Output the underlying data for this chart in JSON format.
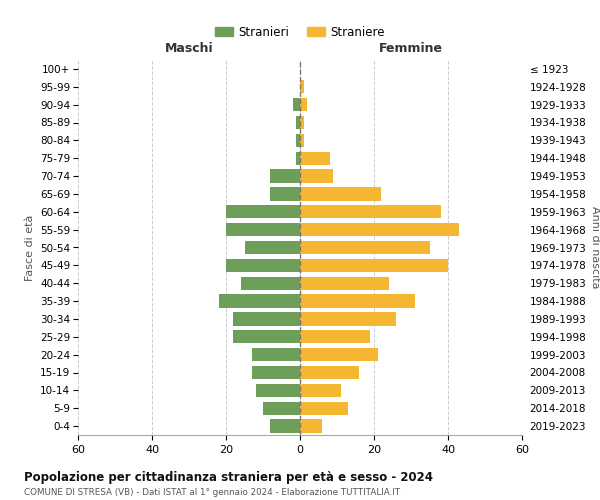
{
  "age_groups": [
    "0-4",
    "5-9",
    "10-14",
    "15-19",
    "20-24",
    "25-29",
    "30-34",
    "35-39",
    "40-44",
    "45-49",
    "50-54",
    "55-59",
    "60-64",
    "65-69",
    "70-74",
    "75-79",
    "80-84",
    "85-89",
    "90-94",
    "95-99",
    "100+"
  ],
  "birth_years": [
    "2019-2023",
    "2014-2018",
    "2009-2013",
    "2004-2008",
    "1999-2003",
    "1994-1998",
    "1989-1993",
    "1984-1988",
    "1979-1983",
    "1974-1978",
    "1969-1973",
    "1964-1968",
    "1959-1963",
    "1954-1958",
    "1949-1953",
    "1944-1948",
    "1939-1943",
    "1934-1938",
    "1929-1933",
    "1924-1928",
    "≤ 1923"
  ],
  "maschi": [
    8,
    10,
    12,
    13,
    13,
    18,
    18,
    22,
    16,
    20,
    15,
    20,
    20,
    8,
    8,
    1,
    1,
    1,
    2,
    0,
    0
  ],
  "femmine": [
    6,
    13,
    11,
    16,
    21,
    19,
    26,
    31,
    24,
    40,
    35,
    43,
    38,
    22,
    9,
    8,
    1,
    1,
    2,
    1,
    0
  ],
  "maschi_color": "#6d9e5a",
  "femmine_color": "#f5b731",
  "center_line_color": "#777777",
  "grid_color": "#cccccc",
  "bg_color": "#ffffff",
  "title": "Popolazione per cittadinanza straniera per età e sesso - 2024",
  "subtitle": "COMUNE DI STRESA (VB) - Dati ISTAT al 1° gennaio 2024 - Elaborazione TUTTITALIA.IT",
  "xlabel_left": "Maschi",
  "xlabel_right": "Femmine",
  "ylabel_left": "Fasce di età",
  "ylabel_right": "Anni di nascita",
  "legend_maschi": "Stranieri",
  "legend_femmine": "Straniere",
  "xlim": 60,
  "bar_height": 0.75
}
